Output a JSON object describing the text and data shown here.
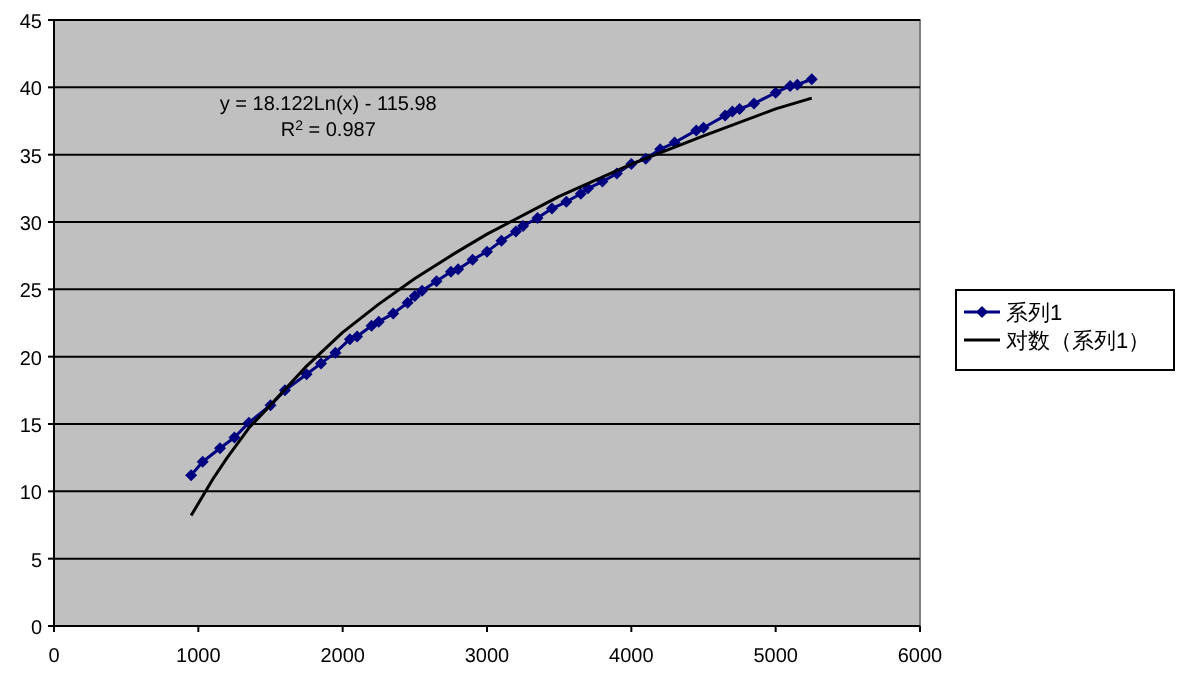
{
  "chart_data": {
    "type": "line",
    "xlim": [
      0,
      6000
    ],
    "ylim": [
      0,
      45
    ],
    "xticks": [
      0,
      1000,
      2000,
      3000,
      4000,
      5000,
      6000
    ],
    "yticks": [
      0,
      5,
      10,
      15,
      20,
      25,
      30,
      35,
      40,
      45
    ],
    "grid": "y",
    "legend": "right",
    "annotations": [
      "y = 18.122Ln(x) - 115.98",
      "R$^{2}$ = 0.987"
    ],
    "series": [
      {
        "name": "系列1",
        "type": "line",
        "marker": "diamond",
        "color": "#000080",
        "x": [
          950,
          1030,
          1150,
          1250,
          1350,
          1500,
          1600,
          1750,
          1850,
          1950,
          2050,
          2100,
          2200,
          2250,
          2350,
          2450,
          2500,
          2550,
          2650,
          2750,
          2800,
          2900,
          3000,
          3100,
          3200,
          3250,
          3350,
          3450,
          3550,
          3650,
          3700,
          3800,
          3900,
          4000,
          4100,
          4200,
          4300,
          4450,
          4500,
          4650,
          4700,
          4750,
          4850,
          5000,
          5100,
          5150,
          5250
        ],
        "values": [
          11.2,
          12.2,
          13.2,
          14,
          15.1,
          16.4,
          17.5,
          18.7,
          19.5,
          20.3,
          21.3,
          21.5,
          22.3,
          22.6,
          23.2,
          24,
          24.5,
          24.9,
          25.6,
          26.3,
          26.5,
          27.2,
          27.8,
          28.6,
          29.3,
          29.7,
          30.3,
          31,
          31.5,
          32.1,
          32.5,
          33,
          33.6,
          34.3,
          34.7,
          35.4,
          35.9,
          36.8,
          37,
          37.9,
          38.2,
          38.4,
          38.8,
          39.6,
          40.1,
          40.2,
          40.6
        ]
      },
      {
        "name": "对数（系列1）",
        "type": "line",
        "marker": "none",
        "color": "#000000",
        "x": [
          950,
          1100,
          1200,
          1350,
          1500,
          1750,
          2000,
          2250,
          2500,
          2750,
          3000,
          3500,
          4000,
          4500,
          5000,
          5250
        ],
        "values": [
          8.2,
          10.9,
          12.5,
          14.7,
          16.4,
          19.3,
          21.8,
          23.9,
          25.8,
          27.5,
          29.1,
          31.9,
          34.3,
          36.4,
          38.4,
          39.2
        ]
      }
    ]
  }
}
